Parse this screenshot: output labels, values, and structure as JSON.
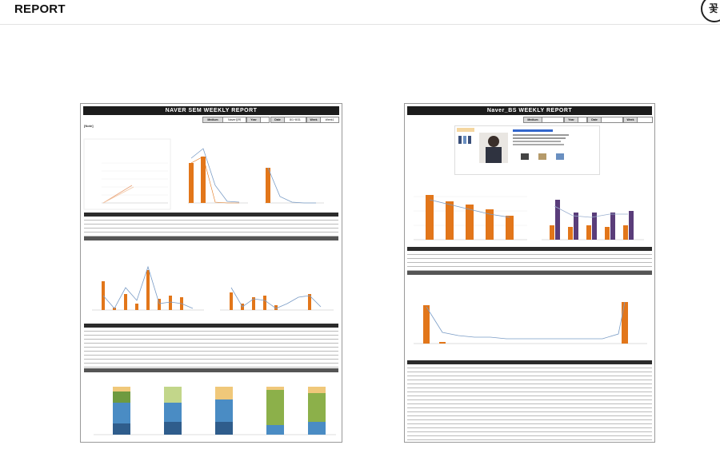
{
  "header": {
    "title": "REPORT"
  },
  "reports": [
    {
      "title": "NAVER SEM WEEKLY REPORT",
      "fields": {
        "medium_label": "Medium",
        "medium_value": "Naver검색",
        "year_label": "Year",
        "date_label": "Date",
        "date_value": "8/1~8/31",
        "week_label": "Week",
        "week_value": "Week1"
      },
      "note": "[Note]",
      "weekly_table": {
        "headers": [
          "Weeks",
          "Dates",
          "Spending",
          "Impression",
          "Click",
          "ROAS"
        ],
        "rows": [
          [
            "Week1",
            "8/1~8/6"
          ],
          [
            "Week2",
            "8/7~8/13"
          ],
          [
            "Week3",
            "8/14~8/20"
          ],
          [
            "Week4",
            "8/21~8/27"
          ],
          [
            "Week5",
            "8/28~8/31"
          ]
        ],
        "total_label": "Naver SEM Total"
      },
      "campaign_table": {
        "headers": [
          "Campaign",
          "ROAS"
        ],
        "total_label": "Naver SEM Total"
      }
    },
    {
      "title": "Naver_BS WEEKLY REPORT",
      "fields": {
        "medium_label": "Medium",
        "year_label": "Year",
        "date_label": "Date",
        "week_label": "Week"
      },
      "weekly_table": {
        "headers": [
          "Weeks",
          "Dates",
          "ROAS"
        ],
        "rows": [
          [
            "Week1",
            "7/1~7/9"
          ],
          [
            "Week2",
            "7/10~7/16"
          ],
          [
            "Week3",
            "7/17~7/23"
          ],
          [
            "Week4",
            "7/24~7/30"
          ],
          [
            "Week5",
            "7/31~8/6"
          ]
        ],
        "total_label": "Naver_BS Total"
      },
      "campaign_table": {
        "headers": [
          "Campaign"
        ]
      }
    }
  ]
}
